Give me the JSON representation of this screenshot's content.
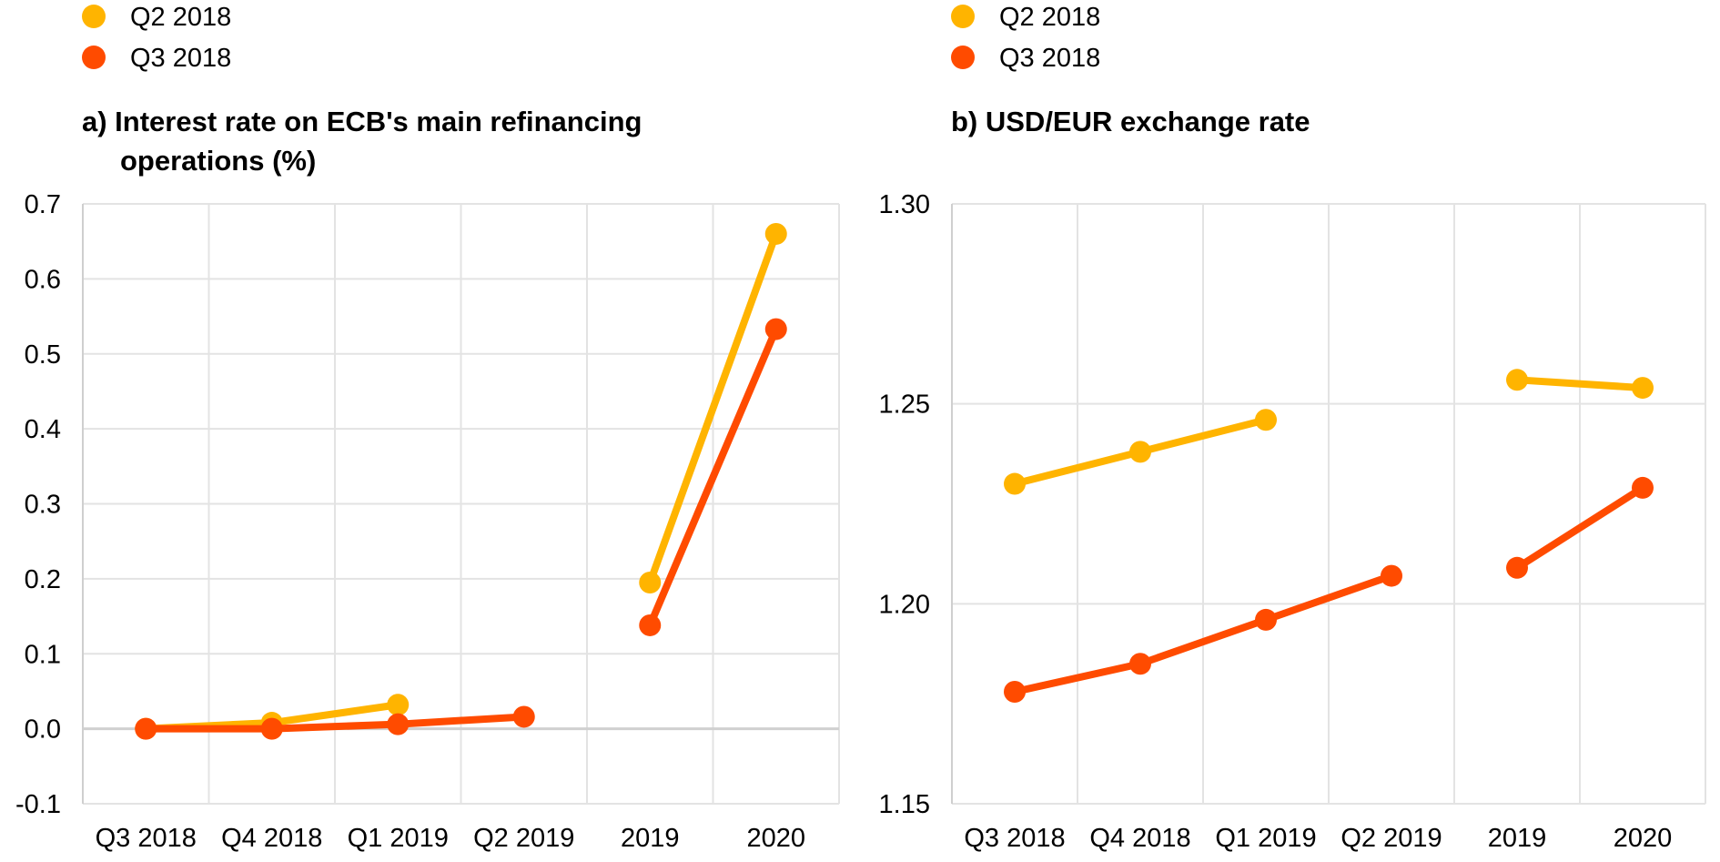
{
  "chart_data": [
    {
      "type": "line",
      "title_lines": [
        "a) Interest rate on ECB's main refinancing",
        "operations (%)"
      ],
      "categories": [
        "Q3 2018",
        "Q4 2018",
        "Q1 2019",
        "Q2 2019",
        "2019",
        "2020"
      ],
      "ylim": [
        -0.1,
        0.7
      ],
      "yticks": [
        "0.7",
        "0.6",
        "0.5",
        "0.4",
        "0.3",
        "0.2",
        "0.1",
        "0.0",
        "-0.1"
      ],
      "ytick_values": [
        0.7,
        0.6,
        0.5,
        0.4,
        0.3,
        0.2,
        0.1,
        0.0,
        -0.1
      ],
      "grid": true,
      "legend": "top-left",
      "series": [
        {
          "name": "Q2 2018",
          "color": "#FFB400",
          "segments": [
            [
              0,
              1,
              2
            ],
            [
              4,
              5
            ]
          ],
          "values": [
            0.0,
            0.008,
            0.032,
            null,
            0.195,
            0.66
          ]
        },
        {
          "name": "Q3 2018",
          "color": "#FF4B00",
          "segments": [
            [
              0,
              1,
              2,
              3
            ],
            [
              4,
              5
            ]
          ],
          "values": [
            0.0,
            0.0,
            0.006,
            0.016,
            0.138,
            0.533
          ]
        }
      ]
    },
    {
      "type": "line",
      "title_lines": [
        "b) USD/EUR exchange rate"
      ],
      "categories": [
        "Q3 2018",
        "Q4 2018",
        "Q1 2019",
        "Q2 2019",
        "2019",
        "2020"
      ],
      "ylim": [
        1.15,
        1.3
      ],
      "yticks": [
        "1.30",
        "1.25",
        "1.20",
        "1.15"
      ],
      "ytick_values": [
        1.3,
        1.25,
        1.2,
        1.15
      ],
      "grid": true,
      "legend": "top-left",
      "series": [
        {
          "name": "Q2 2018",
          "color": "#FFB400",
          "segments": [
            [
              0,
              1,
              2
            ],
            [
              4,
              5
            ]
          ],
          "values": [
            1.23,
            1.238,
            1.246,
            null,
            1.256,
            1.254
          ]
        },
        {
          "name": "Q3 2018",
          "color": "#FF4B00",
          "segments": [
            [
              0,
              1,
              2,
              3
            ],
            [
              4,
              5
            ]
          ],
          "values": [
            1.178,
            1.185,
            1.196,
            1.207,
            1.209,
            1.229
          ]
        }
      ]
    }
  ]
}
